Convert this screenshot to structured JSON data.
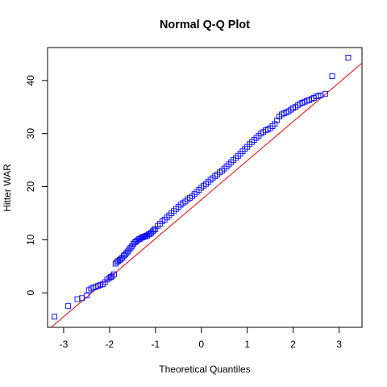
{
  "chart_data": {
    "type": "scatter",
    "title": "Normal Q-Q Plot",
    "xlabel": "Theoretical Quantiles",
    "ylabel": "Hitter WAR",
    "xlim": [
      -3.35,
      3.5
    ],
    "ylim": [
      -6.5,
      46.2
    ],
    "x_ticks": [
      -3,
      -2,
      -1,
      0,
      1,
      2,
      3
    ],
    "x_tick_labels": [
      "-3",
      "-2",
      "-1",
      "0",
      "1",
      "2",
      "3"
    ],
    "y_ticks": [
      0,
      10,
      20,
      30,
      40
    ],
    "y_tick_labels": [
      "0",
      "10",
      "20",
      "30",
      "40"
    ],
    "grid": false,
    "legend": "none",
    "reference_line": {
      "slope": 7.35,
      "intercept": 17.55,
      "color": "#ff0000"
    },
    "marker": {
      "shape": "open-square",
      "color": "#0000ff"
    },
    "series": [
      {
        "x": [
          -3.2,
          -2.9,
          -2.7,
          -2.6,
          -2.5,
          -2.45,
          -2.4,
          -2.35,
          -2.3,
          -2.25,
          -2.2,
          -2.15,
          -2.1,
          -2.05,
          -2.0,
          -1.97,
          -1.94,
          -1.9,
          -1.87,
          -1.84,
          -1.81,
          -1.78,
          -1.75,
          -1.72,
          -1.69,
          -1.66,
          -1.63,
          -1.6,
          -1.57,
          -1.54,
          -1.51,
          -1.48,
          -1.45,
          -1.42,
          -1.39,
          -1.36,
          -1.33,
          -1.3,
          -1.27,
          -1.24,
          -1.21,
          -1.18,
          -1.15,
          -1.12,
          -1.09,
          -1.06,
          -1.03,
          -1.0,
          -0.95,
          -0.9,
          -0.85,
          -0.8,
          -0.75,
          -0.7,
          -0.65,
          -0.6,
          -0.55,
          -0.5,
          -0.45,
          -0.4,
          -0.35,
          -0.3,
          -0.25,
          -0.2,
          -0.15,
          -0.1,
          -0.05,
          0.0,
          0.05,
          0.1,
          0.15,
          0.2,
          0.25,
          0.3,
          0.35,
          0.4,
          0.45,
          0.5,
          0.55,
          0.6,
          0.65,
          0.7,
          0.75,
          0.8,
          0.85,
          0.9,
          0.95,
          1.0,
          1.05,
          1.1,
          1.15,
          1.2,
          1.25,
          1.3,
          1.35,
          1.4,
          1.45,
          1.5,
          1.55,
          1.6,
          1.65,
          1.7,
          1.75,
          1.8,
          1.85,
          1.9,
          1.95,
          2.0,
          2.05,
          2.1,
          2.15,
          2.2,
          2.25,
          2.3,
          2.35,
          2.4,
          2.45,
          2.5,
          2.55,
          2.6,
          2.7,
          2.85,
          3.2
        ],
        "y": [
          -4.5,
          -2.5,
          -1.2,
          -1.0,
          -0.5,
          0.5,
          0.8,
          1.0,
          1.1,
          1.3,
          1.5,
          1.6,
          2.0,
          2.5,
          2.8,
          3.0,
          3.2,
          3.5,
          5.5,
          5.8,
          6.0,
          6.2,
          6.4,
          6.6,
          7.0,
          7.2,
          7.5,
          7.8,
          8.2,
          8.5,
          8.8,
          9.2,
          9.5,
          9.7,
          9.9,
          10.1,
          10.2,
          10.4,
          10.5,
          10.6,
          10.7,
          10.8,
          11.0,
          11.1,
          11.3,
          11.6,
          11.9,
          12.0,
          12.6,
          13.0,
          13.5,
          13.8,
          14.2,
          14.6,
          15.0,
          15.4,
          15.8,
          16.2,
          16.6,
          16.9,
          17.2,
          17.6,
          17.9,
          18.2,
          18.6,
          19.0,
          19.4,
          19.8,
          20.2,
          20.5,
          20.9,
          21.3,
          21.6,
          22.0,
          22.3,
          22.7,
          23.0,
          23.4,
          23.8,
          24.2,
          24.6,
          25.0,
          25.4,
          25.8,
          26.2,
          26.7,
          27.1,
          27.5,
          28.0,
          28.4,
          28.8,
          29.2,
          29.6,
          30.0,
          30.3,
          30.6,
          30.8,
          31.0,
          31.4,
          31.8,
          32.5,
          33.2,
          33.6,
          33.8,
          34.0,
          34.2,
          34.5,
          34.8,
          35.0,
          35.3,
          35.6,
          35.8,
          36.0,
          36.2,
          36.3,
          36.5,
          36.7,
          37.0,
          37.1,
          37.2,
          37.5,
          40.8,
          44.3
        ]
      }
    ]
  }
}
